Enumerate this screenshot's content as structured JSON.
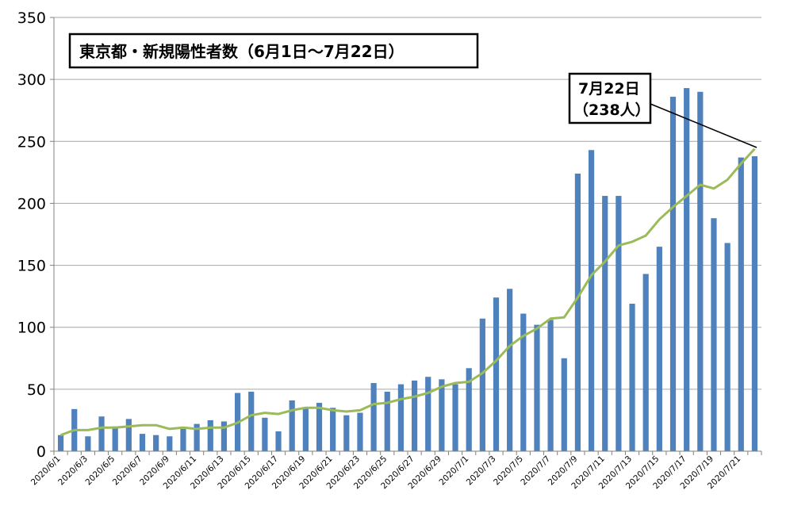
{
  "chart_data": {
    "type": "bar",
    "title": "東京都・新規陽性者数（6月1日～7月22日）",
    "callout": {
      "line1": "7月22日",
      "line2": "（238人）"
    },
    "ylim": [
      0,
      350
    ],
    "y_ticks": [
      0,
      50,
      100,
      150,
      200,
      250,
      300,
      350
    ],
    "grid": true,
    "categories": [
      "2020/6/1",
      "2020/6/2",
      "2020/6/3",
      "2020/6/4",
      "2020/6/5",
      "2020/6/6",
      "2020/6/7",
      "2020/6/8",
      "2020/6/9",
      "2020/6/10",
      "2020/6/11",
      "2020/6/12",
      "2020/6/13",
      "2020/6/14",
      "2020/6/15",
      "2020/6/16",
      "2020/6/17",
      "2020/6/18",
      "2020/6/19",
      "2020/6/20",
      "2020/6/21",
      "2020/6/22",
      "2020/6/23",
      "2020/6/24",
      "2020/6/25",
      "2020/6/26",
      "2020/6/27",
      "2020/6/28",
      "2020/6/29",
      "2020/6/30",
      "2020/7/1",
      "2020/7/2",
      "2020/7/3",
      "2020/7/4",
      "2020/7/5",
      "2020/7/6",
      "2020/7/7",
      "2020/7/8",
      "2020/7/9",
      "2020/7/10",
      "2020/7/11",
      "2020/7/12",
      "2020/7/13",
      "2020/7/14",
      "2020/7/15",
      "2020/7/16",
      "2020/7/17",
      "2020/7/18",
      "2020/7/19",
      "2020/7/20",
      "2020/7/21",
      "2020/7/22"
    ],
    "x_tick_labels": [
      "2020/6/1",
      "",
      "2020/6/3",
      "",
      "2020/6/5",
      "",
      "2020/6/7",
      "",
      "2020/6/9",
      "",
      "2020/6/11",
      "",
      "2020/6/13",
      "",
      "2020/6/15",
      "",
      "2020/6/17",
      "",
      "2020/6/19",
      "",
      "2020/6/21",
      "",
      "2020/6/23",
      "",
      "2020/6/25",
      "",
      "2020/6/27",
      "",
      "2020/6/29",
      "",
      "2020/7/1",
      "",
      "2020/7/3",
      "",
      "2020/7/5",
      "",
      "2020/7/7",
      "",
      "2020/7/9",
      "",
      "2020/7/11",
      "",
      "2020/7/13",
      "",
      "2020/7/15",
      "",
      "2020/7/17",
      "",
      "2020/7/19",
      "",
      "2020/7/21",
      ""
    ],
    "series": [
      {
        "type": "bar",
        "color": "#4f81bd",
        "values": [
          13,
          34,
          12,
          28,
          20,
          26,
          14,
          13,
          12,
          18,
          22,
          25,
          24,
          47,
          48,
          27,
          16,
          41,
          35,
          39,
          35,
          29,
          31,
          55,
          48,
          54,
          57,
          60,
          58,
          54,
          67,
          107,
          124,
          131,
          111,
          102,
          106,
          75,
          224,
          243,
          206,
          206,
          119,
          143,
          165,
          286,
          293,
          290,
          188,
          168,
          237,
          238
        ]
      },
      {
        "type": "line",
        "color": "#9bbb59",
        "values": [
          13,
          17,
          17,
          19,
          19,
          20,
          21,
          21,
          18,
          19,
          18,
          19,
          19,
          23,
          29,
          31,
          30,
          33,
          35,
          35,
          33,
          32,
          33,
          38,
          39,
          42,
          44,
          47,
          52,
          55,
          56,
          63,
          73,
          85,
          93,
          99,
          107,
          108,
          124,
          142,
          153,
          166,
          169,
          174,
          187,
          197,
          206,
          215,
          212,
          219,
          232,
          244
        ]
      }
    ]
  }
}
